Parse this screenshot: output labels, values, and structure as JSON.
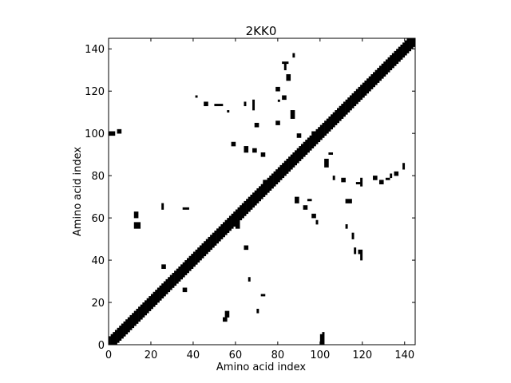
{
  "chart_data": {
    "type": "heatmap",
    "title": "2KK0",
    "xlabel": "Amino acid index",
    "ylabel": "Amino acid index",
    "xlim": [
      0,
      145
    ],
    "ylim": [
      0,
      145
    ],
    "xticks": [
      0,
      20,
      40,
      60,
      80,
      100,
      120,
      140
    ],
    "yticks": [
      0,
      20,
      40,
      60,
      80,
      100,
      120,
      140
    ],
    "grid": false,
    "colors": {
      "contact": "#000000",
      "background": "#ffffff"
    },
    "diagonal_band": {
      "from": 0,
      "to": 144,
      "half_width": 3
    },
    "contact_blocks": [
      [
        0,
        99,
        3,
        2
      ],
      [
        4,
        100,
        2,
        2
      ],
      [
        12,
        60,
        2,
        3
      ],
      [
        12,
        55,
        3,
        3
      ],
      [
        25,
        64,
        1,
        3
      ],
      [
        35,
        64,
        3,
        1
      ],
      [
        25,
        36,
        2,
        2
      ],
      [
        35,
        25,
        2,
        2
      ],
      [
        41,
        117,
        1,
        1
      ],
      [
        45,
        113,
        2,
        2
      ],
      [
        50,
        113,
        4,
        1
      ],
      [
        56,
        110,
        1,
        1
      ],
      [
        58,
        94,
        2,
        2
      ],
      [
        64,
        91,
        2,
        3
      ],
      [
        68,
        91,
        2,
        2
      ],
      [
        72,
        89,
        2,
        2
      ],
      [
        64,
        113,
        1,
        2
      ],
      [
        68,
        111,
        1,
        5
      ],
      [
        69,
        103,
        2,
        2
      ],
      [
        73,
        76,
        2,
        2
      ],
      [
        79,
        104,
        2,
        2
      ],
      [
        79,
        120,
        2,
        2
      ],
      [
        80,
        115,
        1,
        1
      ],
      [
        82,
        116,
        2,
        2
      ],
      [
        82,
        133,
        3,
        1
      ],
      [
        83,
        130,
        1,
        3
      ],
      [
        84,
        125,
        2,
        3
      ],
      [
        87,
        136,
        1,
        2
      ],
      [
        86,
        107,
        2,
        4
      ],
      [
        89,
        98,
        2,
        2
      ],
      [
        96,
        100,
        2,
        1
      ],
      [
        72,
        23,
        2,
        1
      ],
      [
        70,
        15,
        1,
        2
      ],
      [
        66,
        30,
        1,
        2
      ],
      [
        64,
        45,
        2,
        2
      ],
      [
        60,
        55,
        2,
        4
      ],
      [
        60,
        60,
        4,
        3
      ],
      [
        55,
        13,
        2,
        3
      ],
      [
        54,
        11,
        2,
        2
      ],
      [
        88,
        67,
        2,
        3
      ],
      [
        92,
        64,
        2,
        2
      ],
      [
        96,
        60,
        2,
        2
      ],
      [
        94,
        68,
        2,
        1
      ],
      [
        98,
        57,
        1,
        2
      ],
      [
        100,
        0,
        2,
        5
      ],
      [
        101,
        5,
        1,
        1
      ],
      [
        102,
        84,
        2,
        4
      ],
      [
        104,
        90,
        2,
        1
      ],
      [
        106,
        78,
        1,
        2
      ],
      [
        110,
        77,
        2,
        2
      ],
      [
        112,
        67,
        3,
        2
      ],
      [
        112,
        55,
        1,
        2
      ],
      [
        115,
        50,
        1,
        3
      ],
      [
        116,
        43,
        1,
        3
      ],
      [
        118,
        43,
        2,
        2
      ],
      [
        119,
        40,
        1,
        3
      ],
      [
        117,
        76,
        2,
        1
      ],
      [
        119,
        75,
        1,
        4
      ],
      [
        125,
        78,
        2,
        2
      ],
      [
        128,
        76,
        2,
        2
      ],
      [
        131,
        78,
        2,
        1
      ],
      [
        133,
        79,
        1,
        2
      ],
      [
        135,
        80,
        2,
        2
      ],
      [
        139,
        83,
        1,
        3
      ]
    ]
  }
}
